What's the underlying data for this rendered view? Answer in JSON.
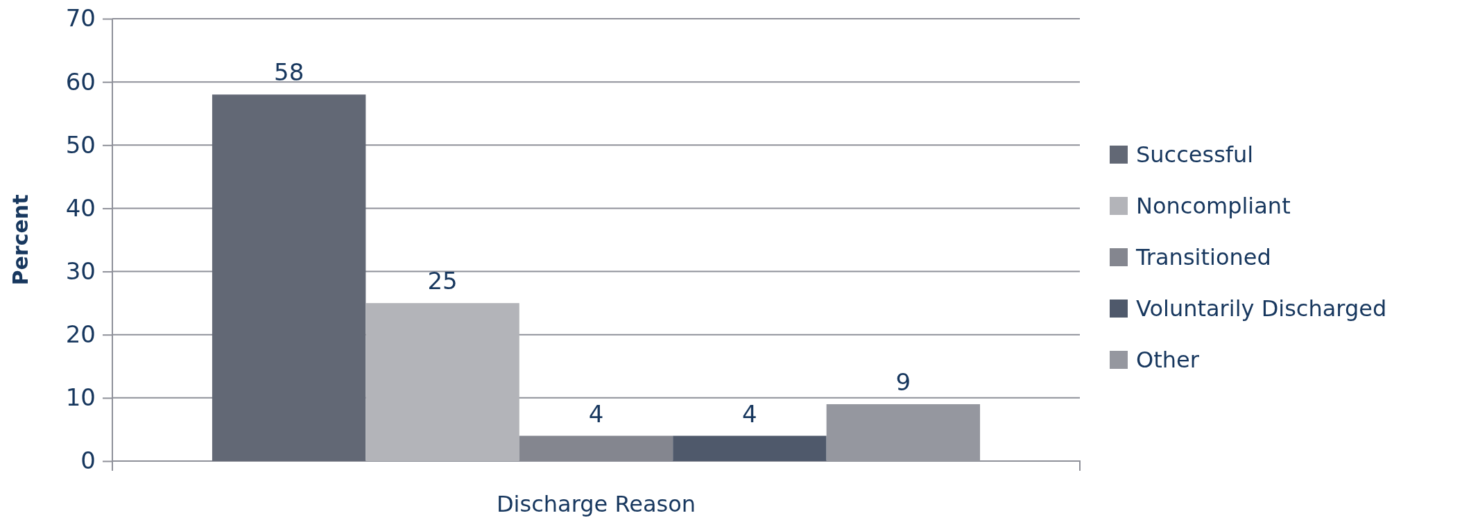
{
  "chart_data": {
    "type": "bar",
    "xlabel": "Discharge Reason",
    "ylabel": "Percent",
    "categories": [
      null
    ],
    "series": [
      {
        "name": "Successful",
        "color": "#626875",
        "values": [
          58
        ]
      },
      {
        "name": "Noncompliant",
        "color": "#b3b4b9",
        "values": [
          25
        ]
      },
      {
        "name": "Transitioned",
        "color": "#84868f",
        "values": [
          4
        ]
      },
      {
        "name": "Voluntarily Discharged",
        "color": "#4f596b",
        "values": [
          4
        ]
      },
      {
        "name": "Other",
        "color": "#95979f",
        "values": [
          9
        ]
      }
    ],
    "ylim": [
      0,
      70
    ],
    "yticks": [
      0,
      10,
      20,
      30,
      40,
      50,
      60,
      70
    ],
    "grid": "y",
    "legend": "right",
    "data_labels": true
  }
}
